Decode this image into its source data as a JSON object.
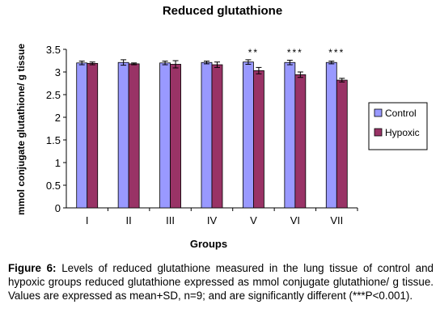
{
  "chart_data": {
    "type": "bar",
    "title": "Reduced glutathione",
    "xlabel": "Groups",
    "ylabel": "mmol conjugate glutathione/ g tissue",
    "ylim": [
      0,
      3.5
    ],
    "yticks": [
      "0",
      "0.5",
      "1",
      "1.5",
      "2",
      "2.5",
      "3",
      "3.5"
    ],
    "grid": false,
    "legend_position": "right",
    "categories": [
      "I",
      "II",
      "III",
      "IV",
      "V",
      "VI",
      "VII"
    ],
    "series": [
      {
        "name": "Control",
        "color": "#9999ff",
        "values": [
          3.2,
          3.21,
          3.2,
          3.21,
          3.22,
          3.21,
          3.21
        ],
        "error": [
          0.04,
          0.06,
          0.04,
          0.03,
          0.05,
          0.05,
          0.03
        ]
      },
      {
        "name": "Hypoxic",
        "color": "#993366",
        "values": [
          3.19,
          3.18,
          3.17,
          3.16,
          3.03,
          2.94,
          2.82
        ],
        "error": [
          0.03,
          0.02,
          0.08,
          0.06,
          0.07,
          0.06,
          0.04
        ]
      }
    ],
    "annotations": [
      "",
      "",
      "",
      "",
      "**",
      "***",
      "***"
    ]
  },
  "caption": {
    "label": "Figure 6:",
    "text": " Levels of reduced glutathione measured in the lung tissue of control and hypoxic groups reduced glutathione expressed as mmol conjugate glutathione/ g tissue. Values are expressed as mean+SD, n=9; and are significantly different (***P<0.001)."
  }
}
